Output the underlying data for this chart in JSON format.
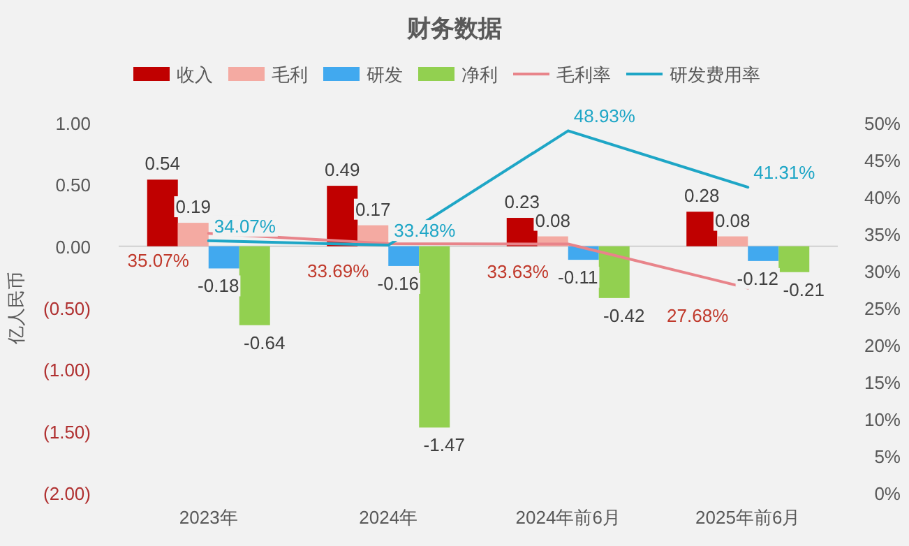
{
  "chart_data": {
    "type": "bar",
    "title": "财务数据",
    "ylabel": "亿人民币",
    "legend": "top",
    "categories": [
      "2023年",
      "2024年",
      "2024年前6月",
      "2025年前6月"
    ],
    "ylim": [
      -2,
      1
    ],
    "yticks": [
      {
        "value": 1,
        "label": "1.00"
      },
      {
        "value": 0.5,
        "label": "0.50"
      },
      {
        "value": 0,
        "label": "0.00"
      },
      {
        "value": -0.5,
        "label": "(0.50)"
      },
      {
        "value": -1,
        "label": "(1.00)"
      },
      {
        "value": -1.5,
        "label": "(1.50)"
      },
      {
        "value": -2,
        "label": "(2.00)"
      }
    ],
    "y2lim": [
      0,
      50
    ],
    "y2ticks": [
      {
        "value": 0,
        "label": "0%"
      },
      {
        "value": 5,
        "label": "5%"
      },
      {
        "value": 10,
        "label": "10%"
      },
      {
        "value": 15,
        "label": "15%"
      },
      {
        "value": 20,
        "label": "20%"
      },
      {
        "value": 25,
        "label": "25%"
      },
      {
        "value": 30,
        "label": "30%"
      },
      {
        "value": 35,
        "label": "35%"
      },
      {
        "value": 40,
        "label": "40%"
      },
      {
        "value": 45,
        "label": "45%"
      },
      {
        "value": 50,
        "label": "50%"
      }
    ],
    "series": [
      {
        "name": "收入",
        "type": "bar",
        "color": "#c00000",
        "values": [
          0.54,
          0.49,
          0.23,
          0.28
        ],
        "value_labels": [
          "0.54",
          "0.49",
          "0.23",
          "0.28"
        ]
      },
      {
        "name": "毛利",
        "type": "bar",
        "color": "#f4aaa2",
        "values": [
          0.19,
          0.17,
          0.08,
          0.08
        ],
        "value_labels": [
          "0.19",
          "0.17",
          "0.08",
          "0.08"
        ]
      },
      {
        "name": "研发",
        "type": "bar",
        "color": "#41a9ef",
        "values": [
          -0.18,
          -0.16,
          -0.11,
          -0.12
        ],
        "value_labels": [
          "-0.18",
          "-0.16",
          "-0.11",
          "-0.12"
        ]
      },
      {
        "name": "净利",
        "type": "bar",
        "color": "#92d050",
        "values": [
          -0.64,
          -1.47,
          -0.42,
          -0.21
        ],
        "value_labels": [
          "-0.64",
          "-1.47",
          "-0.42",
          "-0.21"
        ]
      },
      {
        "name": "毛利率",
        "type": "line",
        "axis": "y2",
        "color": "#e8848a",
        "values": [
          35.07,
          33.69,
          33.63,
          27.68
        ],
        "value_labels": [
          "35.07%",
          "33.69%",
          "33.63%",
          "27.68%"
        ]
      },
      {
        "name": "研发费用率",
        "type": "line",
        "axis": "y2",
        "color": "#1ea6c6",
        "values": [
          34.07,
          33.48,
          48.93,
          41.31
        ],
        "value_labels": [
          "34.07%",
          "33.48%",
          "48.93%",
          "41.31%"
        ]
      }
    ]
  }
}
